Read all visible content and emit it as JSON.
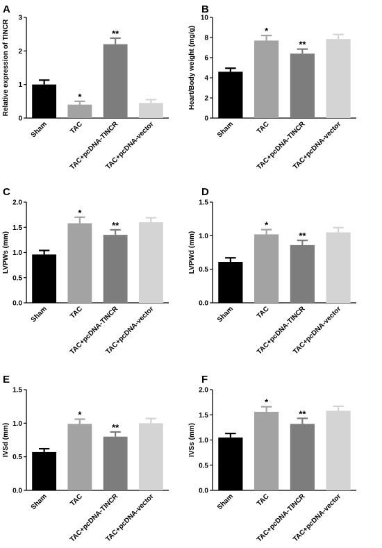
{
  "chart_data": [
    {
      "type": "bar",
      "panel": "A",
      "categories": [
        "Sham",
        "TAC",
        "TAC+pcDNA-TINCR",
        "TAC+pcDNA-vector"
      ],
      "values": [
        1.0,
        0.4,
        2.2,
        0.45
      ],
      "errors": [
        0.13,
        0.1,
        0.18,
        0.1
      ],
      "significance": [
        "",
        "*",
        "**",
        ""
      ],
      "ylabel": "Relative expression of TINCR",
      "ylim": [
        0,
        3
      ],
      "yticks": [
        0,
        1,
        2,
        3
      ],
      "ytick_labels": [
        "0",
        "1",
        "2",
        "3"
      ],
      "colors": [
        "#000000",
        "#a3a3a3",
        "#7d7d7d",
        "#d4d4d4"
      ]
    },
    {
      "type": "bar",
      "panel": "B",
      "categories": [
        "Sham",
        "TAC",
        "TAC+pcDNA-TINCR",
        "TAC+pcDNA-vector"
      ],
      "values": [
        4.6,
        7.7,
        6.4,
        7.85
      ],
      "errors": [
        0.35,
        0.5,
        0.45,
        0.45
      ],
      "significance": [
        "",
        "*",
        "**",
        ""
      ],
      "ylabel": "Heart/Body weight (mg/g)",
      "ylim": [
        0,
        10
      ],
      "yticks": [
        0,
        2,
        4,
        6,
        8,
        10
      ],
      "ytick_labels": [
        "0",
        "2",
        "4",
        "6",
        "8",
        "10"
      ],
      "colors": [
        "#000000",
        "#a3a3a3",
        "#7d7d7d",
        "#d4d4d4"
      ]
    },
    {
      "type": "bar",
      "panel": "C",
      "categories": [
        "Sham",
        "TAC",
        "TAC+pcDNA-TINCR",
        "TAC+pcDNA-vector"
      ],
      "values": [
        0.96,
        1.58,
        1.35,
        1.6
      ],
      "errors": [
        0.08,
        0.12,
        0.1,
        0.09
      ],
      "significance": [
        "",
        "*",
        "**",
        ""
      ],
      "ylabel": "LVPWs (mm)",
      "ylim": [
        0,
        2.0
      ],
      "yticks": [
        0,
        0.5,
        1.0,
        1.5,
        2.0
      ],
      "ytick_labels": [
        "0.0",
        "0.5",
        "1.0",
        "1.5",
        "2.0"
      ],
      "colors": [
        "#000000",
        "#a3a3a3",
        "#7d7d7d",
        "#d4d4d4"
      ]
    },
    {
      "type": "bar",
      "panel": "D",
      "categories": [
        "Sham",
        "TAC",
        "TAC+pcDNA-TINCR",
        "TAC+pcDNA-vector"
      ],
      "values": [
        0.61,
        1.02,
        0.86,
        1.05
      ],
      "errors": [
        0.06,
        0.07,
        0.07,
        0.07
      ],
      "significance": [
        "",
        "*",
        "**",
        ""
      ],
      "ylabel": "LVPWd (mm)",
      "ylim": [
        0,
        1.5
      ],
      "yticks": [
        0,
        0.5,
        1.0,
        1.5
      ],
      "ytick_labels": [
        "0.0",
        "0.5",
        "1.0",
        "1.5"
      ],
      "colors": [
        "#000000",
        "#a3a3a3",
        "#7d7d7d",
        "#d4d4d4"
      ]
    },
    {
      "type": "bar",
      "panel": "E",
      "categories": [
        "Sham",
        "TAC",
        "TAC+pcDNA-TINCR",
        "TAC+pcDNA-vector"
      ],
      "values": [
        0.57,
        0.99,
        0.8,
        1.0
      ],
      "errors": [
        0.05,
        0.07,
        0.07,
        0.07
      ],
      "significance": [
        "",
        "*",
        "**",
        ""
      ],
      "ylabel": "IVSd (mm)",
      "ylim": [
        0,
        1.5
      ],
      "yticks": [
        0,
        0.5,
        1.0,
        1.5
      ],
      "ytick_labels": [
        "0.0",
        "0.5",
        "1.0",
        "1.5"
      ],
      "colors": [
        "#000000",
        "#a3a3a3",
        "#7d7d7d",
        "#d4d4d4"
      ]
    },
    {
      "type": "bar",
      "panel": "F",
      "categories": [
        "Sham",
        "TAC",
        "TAC+pcDNA-TINCR",
        "TAC+pcDNA-vector"
      ],
      "values": [
        1.05,
        1.56,
        1.32,
        1.58
      ],
      "errors": [
        0.08,
        0.1,
        0.11,
        0.09
      ],
      "significance": [
        "",
        "*",
        "**",
        ""
      ],
      "ylabel": "IVSs (mm)",
      "ylim": [
        0,
        2.0
      ],
      "yticks": [
        0,
        0.5,
        1.0,
        1.5,
        2.0
      ],
      "ytick_labels": [
        "0.0",
        "0.5",
        "1.0",
        "1.5",
        "2.0"
      ],
      "colors": [
        "#000000",
        "#a3a3a3",
        "#7d7d7d",
        "#d4d4d4"
      ]
    }
  ]
}
